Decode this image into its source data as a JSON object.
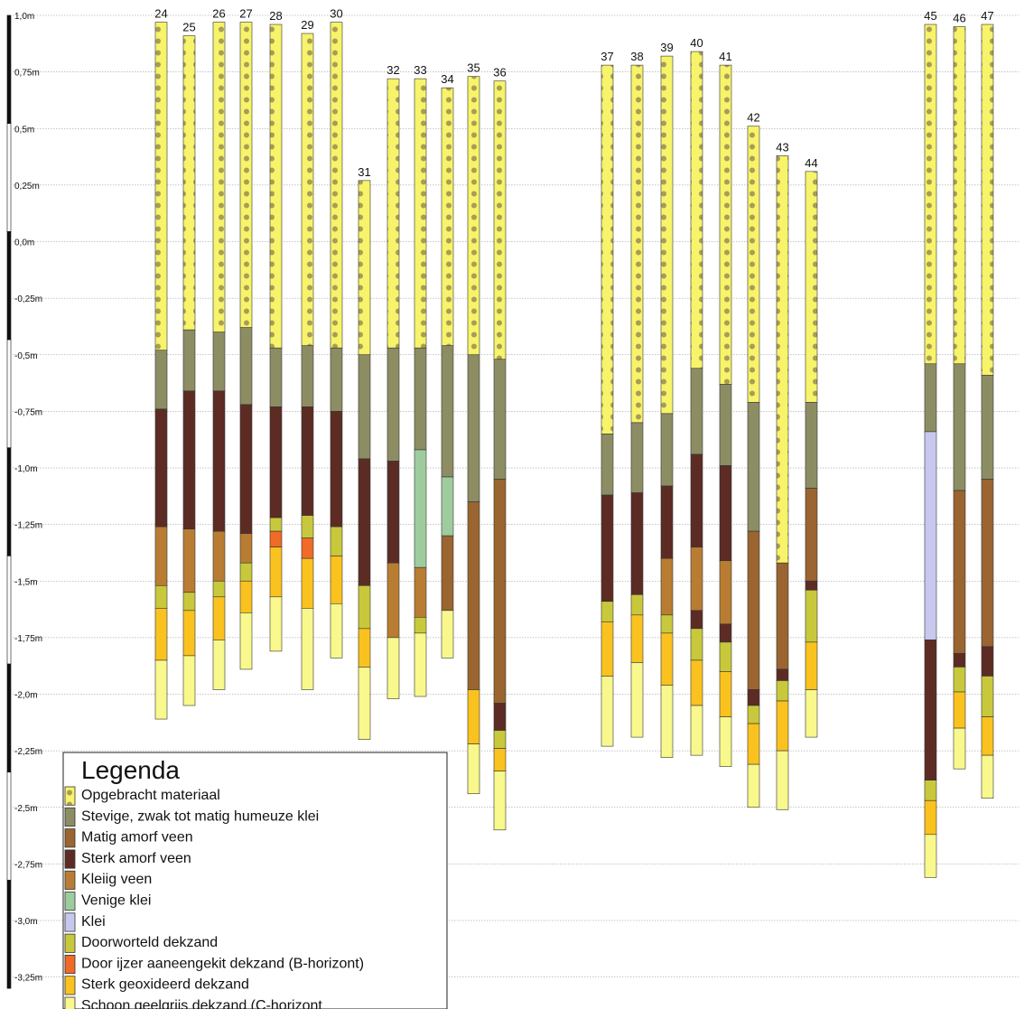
{
  "chart_data": {
    "type": "stratigraphic-column",
    "y_axis": {
      "ticks": [
        {
          "value": 1.0,
          "label": "1,0m"
        },
        {
          "value": 0.75,
          "label": "0,75m"
        },
        {
          "value": 0.5,
          "label": "0,5m"
        },
        {
          "value": 0.25,
          "label": "0,25m"
        },
        {
          "value": 0.0,
          "label": "0,0m"
        },
        {
          "value": -0.25,
          "label": "-0,25m"
        },
        {
          "value": -0.5,
          "label": "-0,5m"
        },
        {
          "value": -0.75,
          "label": "-0,75m"
        },
        {
          "value": -1.0,
          "label": "-1,0m"
        },
        {
          "value": -1.25,
          "label": "-1,25m"
        },
        {
          "value": -1.5,
          "label": "-1,5m"
        },
        {
          "value": -1.75,
          "label": "-1,75m"
        },
        {
          "value": -2.0,
          "label": "-2,0m"
        },
        {
          "value": -2.25,
          "label": "-2,25m"
        },
        {
          "value": -2.5,
          "label": "-2,5m"
        },
        {
          "value": -2.75,
          "label": "-2,75m"
        },
        {
          "value": -3.0,
          "label": "-3,0m"
        },
        {
          "value": -3.25,
          "label": "-3,25m"
        }
      ],
      "ylim": [
        -3.3,
        1.0
      ],
      "grid": true
    },
    "legend": {
      "title": "Legenda",
      "placement": "bottom-left",
      "items": [
        {
          "key": "opgebracht",
          "label": "Opgebracht materiaal",
          "color": "#f7f36a",
          "pattern": "dots"
        },
        {
          "key": "stevige",
          "label": "Stevige, zwak tot matig humeuze klei",
          "color": "#8d8d64"
        },
        {
          "key": "matig",
          "label": "Matig amorf veen",
          "color": "#9a6530"
        },
        {
          "key": "sterk",
          "label": "Sterk amorf veen",
          "color": "#5c2c24"
        },
        {
          "key": "kleiig",
          "label": "Kleiig veen",
          "color": "#b87d32"
        },
        {
          "key": "venige",
          "label": "Venige klei",
          "color": "#9ecc9e"
        },
        {
          "key": "klei",
          "label": "Klei",
          "color": "#c8c8ee"
        },
        {
          "key": "doorworteld",
          "label": "Doorworteld dekzand",
          "color": "#c8c83c"
        },
        {
          "key": "ijzer",
          "label": "Door ijzer aaneengekit dekzand (B-horizont)",
          "color": "#f06a28"
        },
        {
          "key": "geox",
          "label": "Sterk geoxideerd dekzand",
          "color": "#fac21e"
        },
        {
          "key": "schoon",
          "label": "Schoon geelgrijs dekzand (C-horizont",
          "color": "#f8f88c"
        }
      ]
    },
    "boreholes": [
      {
        "id": "24",
        "top": 0.97,
        "layers": [
          [
            "opgebracht",
            -0.48
          ],
          [
            "stevige",
            -0.74
          ],
          [
            "sterk",
            -1.26
          ],
          [
            "kleiig",
            -1.52
          ],
          [
            "doorworteld",
            -1.62
          ],
          [
            "geox",
            -1.85
          ],
          [
            "schoon",
            -2.11
          ]
        ]
      },
      {
        "id": "25",
        "top": 0.91,
        "layers": [
          [
            "opgebracht",
            -0.39
          ],
          [
            "stevige",
            -0.66
          ],
          [
            "sterk",
            -1.27
          ],
          [
            "kleiig",
            -1.55
          ],
          [
            "doorworteld",
            -1.63
          ],
          [
            "geox",
            -1.83
          ],
          [
            "schoon",
            -2.05
          ]
        ]
      },
      {
        "id": "26",
        "top": 0.97,
        "layers": [
          [
            "opgebracht",
            -0.4
          ],
          [
            "stevige",
            -0.66
          ],
          [
            "sterk",
            -1.28
          ],
          [
            "kleiig",
            -1.5
          ],
          [
            "doorworteld",
            -1.57
          ],
          [
            "geox",
            -1.76
          ],
          [
            "schoon",
            -1.98
          ]
        ]
      },
      {
        "id": "27",
        "top": 0.97,
        "layers": [
          [
            "opgebracht",
            -0.38
          ],
          [
            "stevige",
            -0.72
          ],
          [
            "sterk",
            -1.29
          ],
          [
            "kleiig",
            -1.42
          ],
          [
            "doorworteld",
            -1.5
          ],
          [
            "geox",
            -1.64
          ],
          [
            "schoon",
            -1.89
          ]
        ]
      },
      {
        "id": "28",
        "top": 0.96,
        "layers": [
          [
            "opgebracht",
            -0.47
          ],
          [
            "stevige",
            -0.73
          ],
          [
            "sterk",
            -1.22
          ],
          [
            "doorworteld",
            -1.28
          ],
          [
            "ijzer",
            -1.35
          ],
          [
            "geox",
            -1.57
          ],
          [
            "schoon",
            -1.81
          ]
        ]
      },
      {
        "id": "29",
        "top": 0.92,
        "layers": [
          [
            "opgebracht",
            -0.46
          ],
          [
            "stevige",
            -0.73
          ],
          [
            "sterk",
            -1.21
          ],
          [
            "doorworteld",
            -1.31
          ],
          [
            "ijzer",
            -1.4
          ],
          [
            "geox",
            -1.62
          ],
          [
            "schoon",
            -1.98
          ]
        ]
      },
      {
        "id": "30",
        "top": 0.97,
        "layers": [
          [
            "opgebracht",
            -0.47
          ],
          [
            "stevige",
            -0.75
          ],
          [
            "sterk",
            -1.26
          ],
          [
            "doorworteld",
            -1.39
          ],
          [
            "geox",
            -1.6
          ],
          [
            "schoon",
            -1.84
          ]
        ]
      },
      {
        "id": "31",
        "top": 0.27,
        "layers": [
          [
            "opgebracht",
            -0.5
          ],
          [
            "stevige",
            -0.96
          ],
          [
            "sterk",
            -1.52
          ],
          [
            "doorworteld",
            -1.71
          ],
          [
            "geox",
            -1.88
          ],
          [
            "schoon",
            -2.2
          ]
        ]
      },
      {
        "id": "32",
        "top": 0.72,
        "layers": [
          [
            "opgebracht",
            -0.47
          ],
          [
            "stevige",
            -0.97
          ],
          [
            "sterk",
            -1.42
          ],
          [
            "kleiig",
            -1.75
          ],
          [
            "schoon",
            -2.02
          ]
        ]
      },
      {
        "id": "33",
        "top": 0.72,
        "layers": [
          [
            "opgebracht",
            -0.47
          ],
          [
            "stevige",
            -0.92
          ],
          [
            "venige",
            -1.44
          ],
          [
            "kleiig",
            -1.66
          ],
          [
            "doorworteld",
            -1.73
          ],
          [
            "schoon",
            -2.01
          ]
        ]
      },
      {
        "id": "34",
        "top": 0.68,
        "layers": [
          [
            "opgebracht",
            -0.46
          ],
          [
            "stevige",
            -1.04
          ],
          [
            "venige",
            -1.3
          ],
          [
            "matig",
            -1.63
          ],
          [
            "schoon",
            -1.84
          ]
        ]
      },
      {
        "id": "35",
        "top": 0.73,
        "layers": [
          [
            "opgebracht",
            -0.5
          ],
          [
            "stevige",
            -1.15
          ],
          [
            "matig",
            -1.98
          ],
          [
            "geox",
            -2.22
          ],
          [
            "schoon",
            -2.44
          ]
        ]
      },
      {
        "id": "36",
        "top": 0.71,
        "layers": [
          [
            "opgebracht",
            -0.52
          ],
          [
            "stevige",
            -1.05
          ],
          [
            "matig",
            -2.04
          ],
          [
            "sterk",
            -2.16
          ],
          [
            "doorworteld",
            -2.24
          ],
          [
            "geox",
            -2.34
          ],
          [
            "schoon",
            -2.6
          ]
        ]
      },
      {
        "id": "37",
        "top": 0.78,
        "layers": [
          [
            "opgebracht",
            -0.85
          ],
          [
            "stevige",
            -1.12
          ],
          [
            "sterk",
            -1.59
          ],
          [
            "doorworteld",
            -1.68
          ],
          [
            "geox",
            -1.92
          ],
          [
            "schoon",
            -2.23
          ]
        ]
      },
      {
        "id": "38",
        "top": 0.78,
        "layers": [
          [
            "opgebracht",
            -0.8
          ],
          [
            "stevige",
            -1.11
          ],
          [
            "sterk",
            -1.56
          ],
          [
            "doorworteld",
            -1.65
          ],
          [
            "geox",
            -1.86
          ],
          [
            "schoon",
            -2.19
          ]
        ]
      },
      {
        "id": "39",
        "top": 0.82,
        "layers": [
          [
            "opgebracht",
            -0.76
          ],
          [
            "stevige",
            -1.08
          ],
          [
            "sterk",
            -1.4
          ],
          [
            "kleiig",
            -1.65
          ],
          [
            "doorworteld",
            -1.73
          ],
          [
            "geox",
            -1.96
          ],
          [
            "schoon",
            -2.28
          ]
        ]
      },
      {
        "id": "40",
        "top": 0.84,
        "layers": [
          [
            "opgebracht",
            -0.56
          ],
          [
            "stevige",
            -0.94
          ],
          [
            "sterk",
            -1.35
          ],
          [
            "kleiig",
            -1.63
          ],
          [
            "sterk",
            -1.71
          ],
          [
            "doorworteld",
            -1.85
          ],
          [
            "geox",
            -2.05
          ],
          [
            "schoon",
            -2.27
          ]
        ]
      },
      {
        "id": "41",
        "top": 0.78,
        "layers": [
          [
            "opgebracht",
            -0.63
          ],
          [
            "stevige",
            -0.99
          ],
          [
            "sterk",
            -1.41
          ],
          [
            "kleiig",
            -1.69
          ],
          [
            "sterk",
            -1.77
          ],
          [
            "doorworteld",
            -1.9
          ],
          [
            "geox",
            -2.1
          ],
          [
            "schoon",
            -2.32
          ]
        ]
      },
      {
        "id": "42",
        "top": 0.51,
        "layers": [
          [
            "opgebracht",
            -0.71
          ],
          [
            "stevige",
            -1.28
          ],
          [
            "matig",
            -1.98
          ],
          [
            "sterk",
            -2.05
          ],
          [
            "doorworteld",
            -2.13
          ],
          [
            "geox",
            -2.31
          ],
          [
            "schoon",
            -2.5
          ]
        ]
      },
      {
        "id": "43",
        "top": 0.38,
        "layers": [
          [
            "opgebracht",
            -1.42
          ],
          [
            "matig",
            -1.89
          ],
          [
            "sterk",
            -1.94
          ],
          [
            "doorworteld",
            -2.03
          ],
          [
            "geox",
            -2.25
          ],
          [
            "schoon",
            -2.51
          ]
        ]
      },
      {
        "id": "44",
        "top": 0.31,
        "layers": [
          [
            "opgebracht",
            -0.71
          ],
          [
            "stevige",
            -1.09
          ],
          [
            "matig",
            -1.5
          ],
          [
            "sterk",
            -1.54
          ],
          [
            "doorworteld",
            -1.77
          ],
          [
            "geox",
            -1.98
          ],
          [
            "schoon",
            -2.19
          ]
        ]
      },
      {
        "id": "45",
        "top": 0.96,
        "layers": [
          [
            "opgebracht",
            -0.54
          ],
          [
            "stevige",
            -0.84
          ],
          [
            "klei",
            -1.76
          ],
          [
            "sterk",
            -2.38
          ],
          [
            "doorworteld",
            -2.47
          ],
          [
            "geox",
            -2.62
          ],
          [
            "schoon",
            -2.81
          ]
        ]
      },
      {
        "id": "46",
        "top": 0.95,
        "layers": [
          [
            "opgebracht",
            -0.54
          ],
          [
            "stevige",
            -1.1
          ],
          [
            "matig",
            -1.82
          ],
          [
            "sterk",
            -1.88
          ],
          [
            "doorworteld",
            -1.99
          ],
          [
            "geox",
            -2.15
          ],
          [
            "schoon",
            -2.33
          ]
        ]
      },
      {
        "id": "47",
        "top": 0.96,
        "layers": [
          [
            "opgebracht",
            -0.59
          ],
          [
            "stevige",
            -1.05
          ],
          [
            "matig",
            -1.79
          ],
          [
            "sterk",
            -1.92
          ],
          [
            "doorworteld",
            -2.1
          ],
          [
            "geox",
            -2.27
          ],
          [
            "schoon",
            -2.46
          ]
        ]
      }
    ]
  }
}
